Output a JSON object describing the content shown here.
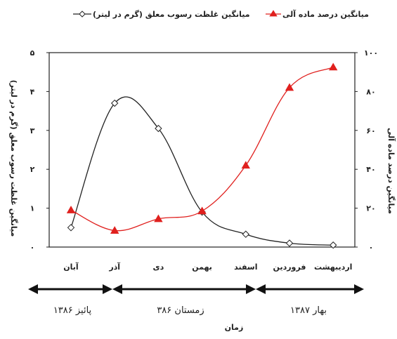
{
  "chart_data": {
    "type": "line",
    "categories": [
      "آبان",
      "آذر",
      "دی",
      "بهمن",
      "اسفند",
      "فروردین",
      "اردیبهشت"
    ],
    "series": [
      {
        "name": "میانگین غلظت رسوب معلق (گرم در لیتر)",
        "axis": "left",
        "color": "#222222",
        "marker": "diamond-open",
        "values": [
          0.5,
          3.7,
          3.05,
          0.9,
          0.33,
          0.1,
          0.05
        ]
      },
      {
        "name": "میانگین درصد ماده آلی",
        "axis": "right",
        "color": "#e0201e",
        "marker": "triangle-filled",
        "values": [
          19,
          8.5,
          14.5,
          18.5,
          42,
          82,
          92.5
        ]
      }
    ],
    "y_left": {
      "label": "میانگین غلظت رسوب معلق (گرم در لیتر)",
      "ylim": [
        0,
        5
      ],
      "ticks": [
        "۰",
        "۱",
        "۲",
        "۳",
        "۴",
        "۵"
      ]
    },
    "y_right": {
      "label": "میانگین درصد ماده آلی",
      "ylim": [
        0,
        100
      ],
      "ticks": [
        "۰",
        "۲۰",
        "۴۰",
        "۶۰",
        "۸۰",
        "۱۰۰"
      ]
    },
    "xlabel": "زمان",
    "seasons": [
      {
        "label": "پائیز ۱۳۸۶",
        "from": 0,
        "to": 1
      },
      {
        "label": "زمستان ۳۸۶",
        "from": 1,
        "to": 4
      },
      {
        "label": "بهار ۱۳۸۷",
        "from": 4,
        "to": 6
      }
    ],
    "grid": false,
    "legend_position": "top"
  }
}
